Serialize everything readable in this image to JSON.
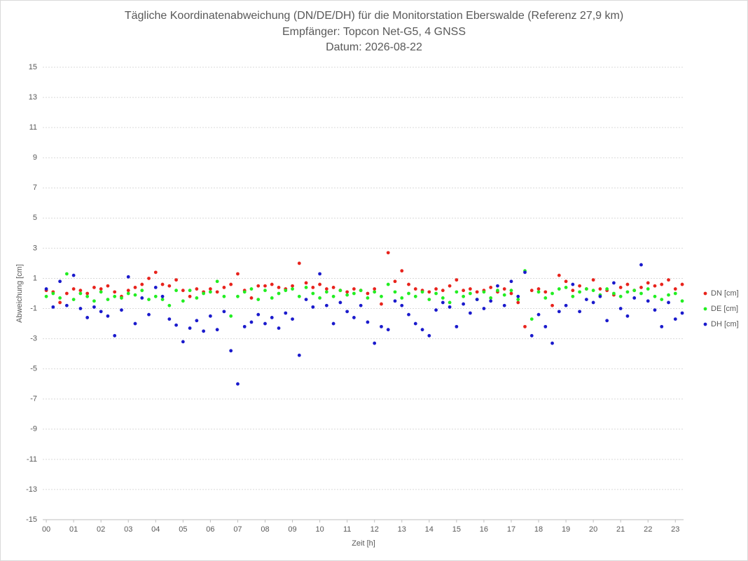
{
  "chart_data": {
    "type": "scatter",
    "title": "Tägliche Koordinatenabweichung (DN/DE/DH) für die Monitorstation Eberswalde (Referenz 27,9 km)",
    "subtitle": [
      "Empfänger: Topcon Net-G5, 4 GNSS",
      "Datum: 2026-08-22"
    ],
    "x_label": "Zeit [h]",
    "y_label": "Abweichung [cm]",
    "xlim": [
      -0.13,
      23.3
    ],
    "xticks": [
      {
        "value": 0,
        "label": "00"
      },
      {
        "value": 1,
        "label": "01"
      },
      {
        "value": 2,
        "label": "02"
      },
      {
        "value": 3,
        "label": "03"
      },
      {
        "value": 4,
        "label": "04"
      },
      {
        "value": 5,
        "label": "05"
      },
      {
        "value": 6,
        "label": "06"
      },
      {
        "value": 7,
        "label": "07"
      },
      {
        "value": 8,
        "label": "08"
      },
      {
        "value": 9,
        "label": "09"
      },
      10,
      11,
      12,
      13,
      14,
      15,
      16,
      17,
      18,
      19,
      20,
      21,
      22,
      23
    ],
    "ylim": [
      -15,
      15
    ],
    "yticks": [
      -15,
      -13,
      -11,
      -9,
      -7,
      -5,
      -3,
      -1,
      1,
      3,
      5,
      7,
      9,
      11,
      13,
      15
    ],
    "grid": true,
    "legend": "right",
    "x": [
      0,
      0.25,
      0.5,
      0.75,
      1,
      1.25,
      1.5,
      1.75,
      2,
      2.25,
      2.5,
      2.75,
      3,
      3.25,
      3.5,
      3.75,
      4,
      4.25,
      4.5,
      4.75,
      5,
      5.25,
      5.5,
      5.75,
      6,
      6.25,
      6.5,
      6.75,
      7,
      7.25,
      7.5,
      7.75,
      8,
      8.25,
      8.5,
      8.75,
      9,
      9.25,
      9.5,
      9.75,
      10,
      10.25,
      10.5,
      10.75,
      11,
      11.25,
      11.5,
      11.75,
      12,
      12.25,
      12.5,
      12.75,
      13,
      13.25,
      13.5,
      13.75,
      14,
      14.25,
      14.5,
      14.75,
      15,
      15.25,
      15.5,
      15.75,
      16,
      16.25,
      16.5,
      16.75,
      17,
      17.25,
      17.5,
      17.75,
      18,
      18.25,
      18.5,
      18.75,
      19,
      19.25,
      19.5,
      19.75,
      20,
      20.25,
      20.5,
      20.75,
      21,
      21.25,
      21.5,
      21.75,
      22,
      22.25,
      22.5,
      22.75,
      23,
      23.25
    ],
    "series": [
      {
        "name": "DN [cm]",
        "color": "#e8231c",
        "values": [
          0.2,
          0.1,
          -0.6,
          0.0,
          0.3,
          0.2,
          0.0,
          0.4,
          0.3,
          0.5,
          0.1,
          -0.2,
          0.2,
          0.4,
          0.6,
          1.0,
          1.4,
          0.6,
          0.5,
          0.9,
          0.2,
          -0.2,
          0.3,
          0.1,
          0.3,
          0.1,
          0.4,
          0.6,
          1.3,
          0.2,
          -0.3,
          0.5,
          0.5,
          0.6,
          0.4,
          0.3,
          0.5,
          2.0,
          0.7,
          0.4,
          0.6,
          0.3,
          0.4,
          0.2,
          0.1,
          0.3,
          0.2,
          0.0,
          0.3,
          -0.7,
          2.7,
          0.8,
          1.5,
          0.6,
          0.3,
          0.2,
          0.1,
          0.3,
          0.2,
          0.5,
          0.9,
          0.2,
          0.3,
          0.1,
          0.2,
          0.4,
          0.1,
          0.3,
          0.0,
          -0.6,
          -2.2,
          0.2,
          0.3,
          0.1,
          -0.8,
          1.2,
          0.8,
          0.2,
          0.5,
          0.3,
          0.9,
          0.3,
          0.2,
          -0.1,
          0.4,
          0.6,
          0.2,
          0.4,
          0.7,
          0.5,
          0.6,
          0.9,
          0.3,
          0.6
        ]
      },
      {
        "name": "DE [cm]",
        "color": "#22ee22",
        "values": [
          -0.2,
          0.0,
          -0.3,
          1.3,
          -0.4,
          0.0,
          -0.2,
          -0.5,
          0.1,
          -0.4,
          -0.2,
          -0.3,
          0.0,
          -0.1,
          0.2,
          -0.4,
          -0.2,
          -0.4,
          -0.8,
          0.2,
          -0.5,
          0.2,
          -0.3,
          0.0,
          0.1,
          0.8,
          -0.2,
          -1.5,
          -0.2,
          0.1,
          0.3,
          -0.4,
          0.2,
          -0.3,
          0.0,
          0.2,
          0.3,
          -0.2,
          0.4,
          0.0,
          -0.3,
          0.1,
          -0.2,
          0.2,
          -0.1,
          0.0,
          0.2,
          -0.3,
          0.1,
          -0.2,
          0.6,
          0.1,
          -0.3,
          0.0,
          -0.2,
          0.1,
          -0.4,
          0.0,
          -0.3,
          -0.6,
          0.1,
          -0.2,
          0.0,
          -0.4,
          0.1,
          -0.3,
          0.2,
          -0.1,
          0.2,
          -0.4,
          1.5,
          -1.7,
          0.1,
          -0.3,
          0.0,
          0.3,
          0.4,
          -0.2,
          0.1,
          0.3,
          0.2,
          -0.1,
          0.3,
          0.0,
          -0.2,
          0.1,
          0.2,
          0.0,
          0.3,
          -0.2,
          -0.4,
          -0.1,
          0.0,
          -0.5
        ]
      },
      {
        "name": "DH [cm]",
        "color": "#1a1acc",
        "values": [
          0.3,
          -0.9,
          0.8,
          -0.8,
          1.2,
          -1.0,
          -1.6,
          -0.9,
          -1.2,
          -1.5,
          -2.8,
          -1.1,
          1.1,
          -2.0,
          -0.3,
          -1.4,
          0.4,
          -0.2,
          -1.7,
          -2.1,
          -3.2,
          -2.3,
          -1.8,
          -2.5,
          -1.5,
          -2.4,
          -1.2,
          -3.8,
          -6.0,
          -2.2,
          -1.9,
          -1.4,
          -2.0,
          -1.6,
          -2.3,
          -1.3,
          -1.7,
          -4.1,
          -0.4,
          -0.9,
          1.3,
          -0.8,
          -2.0,
          -0.6,
          -1.2,
          -1.6,
          -0.8,
          -1.9,
          -3.3,
          -2.2,
          -2.4,
          -0.5,
          -0.8,
          -1.4,
          -2.0,
          -2.4,
          -2.8,
          -1.1,
          -0.6,
          -0.9,
          -2.2,
          -0.7,
          -1.3,
          -0.4,
          -1.0,
          -0.5,
          0.5,
          -0.8,
          0.8,
          -0.2,
          1.4,
          -2.8,
          -1.4,
          -2.2,
          -3.3,
          -1.2,
          -0.8,
          0.6,
          -1.2,
          -0.4,
          -0.6,
          -0.2,
          -1.8,
          0.7,
          -1.0,
          -1.5,
          -0.3,
          1.9,
          -0.5,
          -1.1,
          -2.2,
          -0.6,
          -1.7,
          -1.3
        ]
      }
    ]
  }
}
